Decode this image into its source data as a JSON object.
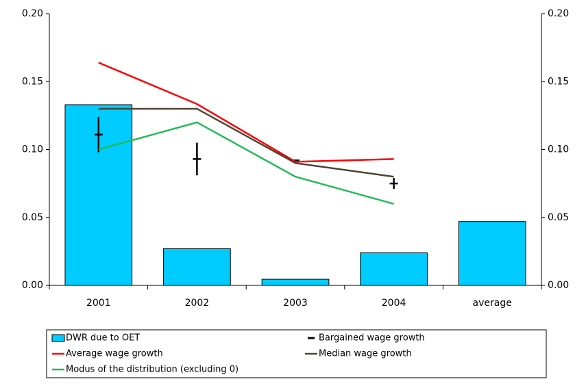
{
  "chart_data": {
    "type": "bar",
    "categories": [
      "2001",
      "2002",
      "2003",
      "2004",
      "average"
    ],
    "ylim": [
      0,
      0.2
    ],
    "yticks": [
      {
        "value": 0,
        "label": "0.00"
      },
      {
        "value": 0.05,
        "label": "0.05"
      },
      {
        "value": 0.1,
        "label": "0.10"
      },
      {
        "value": 0.15,
        "label": "0.15"
      },
      {
        "value": 0.2,
        "label": "0.20"
      }
    ],
    "y2lim": [
      0,
      0.2
    ],
    "y2ticks": [
      {
        "value": 0,
        "label": "0.00"
      },
      {
        "value": 0.05,
        "label": "0.05"
      },
      {
        "value": 0.1,
        "label": "0.10"
      },
      {
        "value": 0.15,
        "label": "0.15"
      },
      {
        "value": 0.2,
        "label": "0.20"
      }
    ],
    "grid": false,
    "legend": "bottom",
    "series": [
      {
        "name": "DWR due to OET",
        "type": "bar",
        "color": "#00ccff",
        "values": [
          0.133,
          0.027,
          0.0045,
          0.024,
          0.047
        ]
      },
      {
        "name": "Bargained wage growth",
        "type": "errorbar",
        "color": "#000000",
        "values": [
          0.111,
          0.093,
          0.092,
          0.075,
          null
        ],
        "errors": [
          0.013,
          0.012,
          0,
          0.004,
          null
        ]
      },
      {
        "name": "Average wage growth",
        "type": "line",
        "color": "#ff0000",
        "values": [
          0.164,
          0.1335,
          0.091,
          0.093,
          null
        ]
      },
      {
        "name": "Median wage growth",
        "type": "line",
        "color": "#4f4434",
        "values": [
          0.13,
          0.13,
          0.09,
          0.08,
          null
        ]
      },
      {
        "name": "Modus of the distribution (excluding 0)",
        "type": "line",
        "color": "#22bb55",
        "values": [
          0.1,
          0.12,
          0.08,
          0.06,
          null
        ]
      }
    ]
  }
}
